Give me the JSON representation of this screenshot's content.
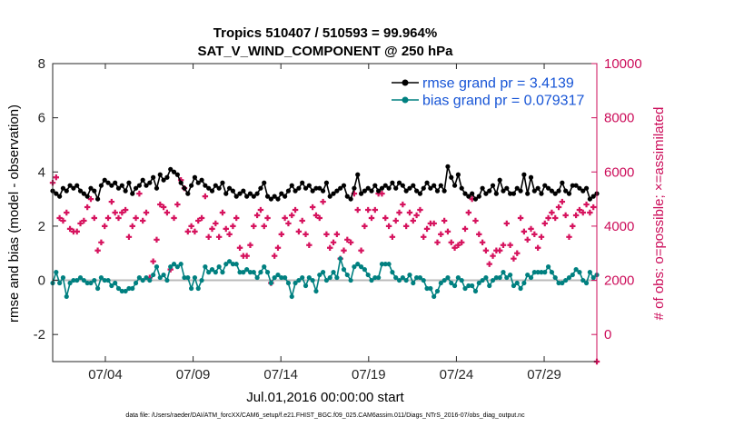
{
  "chart_data": {
    "type": "line",
    "title": [
      "Tropics 510407 / 510593 = 99.964%",
      "SAT_V_WIND_COMPONENT @ 250 hPa"
    ],
    "xlabel": "Jul.01,2016 00:00:00 start",
    "ylabel": "rmse and bias (model - observation)",
    "ylabel_right": "# of obs: o=possible; ×=assimilated",
    "footnote": "data file: /Users/raeder/DAI/ATM_forcXX/CAM6_setup/f.e21.FHIST_BGC.f09_025.CAM6assim.011/Diags_NTrS_2016-07/obs_diag_output.nc",
    "x_ticks": [
      "07/04",
      "07/09",
      "07/14",
      "07/19",
      "07/24",
      "07/29"
    ],
    "x_tick_days": [
      4,
      9,
      14,
      19,
      24,
      29
    ],
    "xlim_days": [
      1,
      32
    ],
    "ylim": [
      -3,
      8
    ],
    "y_ticks": [
      -2,
      0,
      2,
      4,
      6,
      8
    ],
    "ylim_right": [
      -1000,
      10000
    ],
    "y_ticks_right": [
      0,
      2000,
      4000,
      6000,
      8000,
      10000
    ],
    "zero_line": 0,
    "colors": {
      "rmse": "#000000",
      "bias": "#008080",
      "obs": "#d6135e",
      "zero": "#bbbbbb",
      "axis_right": "#cc0d5a",
      "legend_text": "#1654d6"
    },
    "series": [
      {
        "name": "rmse grand pr = 3.4139",
        "axis": "left",
        "values": [
          3.3,
          3.2,
          3.1,
          3.4,
          3.3,
          3.5,
          3.4,
          3.5,
          3.3,
          3.2,
          3.1,
          3.4,
          3.3,
          3.0,
          3.5,
          3.7,
          3.6,
          3.5,
          3.6,
          3.4,
          3.5,
          3.3,
          3.6,
          3.2,
          3.4,
          3.5,
          3.7,
          3.5,
          3.6,
          3.8,
          3.4,
          3.9,
          3.7,
          3.8,
          4.1,
          4.0,
          3.9,
          3.6,
          3.4,
          3.2,
          3.5,
          3.8,
          3.6,
          3.7,
          3.5,
          3.4,
          3.3,
          3.5,
          3.4,
          3.6,
          3.2,
          3.4,
          3.3,
          3.1,
          3.2,
          3.3,
          3.1,
          3.2,
          3.1,
          3.2,
          3.4,
          3.6,
          3.1,
          3.0,
          3.1,
          3.0,
          3.2,
          3.1,
          3.3,
          3.5,
          3.3,
          3.4,
          3.6,
          3.4,
          3.5,
          3.3,
          3.4,
          3.4,
          3.3,
          3.6,
          3.1,
          3.2,
          3.3,
          3.4,
          3.5,
          3.1,
          3.0,
          3.4,
          3.9,
          3.2,
          3.3,
          3.4,
          3.3,
          3.5,
          3.3,
          3.4,
          3.5,
          3.4,
          3.6,
          3.4,
          3.6,
          3.5,
          3.3,
          3.4,
          3.5,
          3.3,
          3.2,
          3.4,
          3.6,
          3.4,
          3.5,
          3.3,
          3.5,
          3.3,
          4.2,
          3.8,
          3.5,
          3.9,
          3.4,
          3.2,
          3.1,
          3.2,
          3.0,
          3.1,
          3.4,
          3.2,
          3.3,
          3.5,
          3.2,
          3.7,
          3.3,
          3.4,
          3.2,
          3.2,
          3.4,
          3.3,
          3.9,
          3.2,
          3.8,
          3.3,
          3.4,
          3.2,
          3.5,
          3.4,
          3.3,
          3.2,
          3.3,
          3.6,
          3.3,
          3.2,
          3.5,
          3.5,
          3.4,
          3.3,
          3.4,
          3.0,
          3.1,
          3.2
        ]
      },
      {
        "name": "bias grand pr = 0.079317",
        "axis": "left",
        "values": [
          -0.1,
          0.3,
          -0.1,
          0.1,
          -0.6,
          -0.1,
          0.0,
          0.0,
          0.1,
          0.0,
          -0.1,
          -0.1,
          0.0,
          -0.3,
          0.1,
          0.0,
          0.0,
          -0.2,
          -0.1,
          -0.3,
          -0.4,
          -0.4,
          -0.3,
          -0.3,
          -0.1,
          0.1,
          0.0,
          0.1,
          0.0,
          0.2,
          0.5,
          0.1,
          0.2,
          0.0,
          0.5,
          0.6,
          0.5,
          0.6,
          0.1,
          0.1,
          -0.3,
          0.1,
          -0.3,
          0.0,
          0.5,
          0.3,
          0.4,
          0.3,
          0.5,
          0.3,
          0.6,
          0.7,
          0.6,
          0.6,
          0.3,
          0.3,
          0.4,
          0.3,
          0.3,
          0.1,
          0.3,
          0.5,
          0.3,
          -0.1,
          0.1,
          0.2,
          0.1,
          0.1,
          -0.1,
          -0.6,
          -0.1,
          0.0,
          0.1,
          -0.2,
          0.1,
          0.0,
          -0.4,
          0.2,
          0.3,
          0.0,
          0.1,
          0.3,
          0.1,
          0.8,
          0.4,
          0.2,
          0.0,
          0.5,
          0.6,
          0.5,
          0.4,
          0.2,
          0.0,
          0.1,
          0.1,
          0.6,
          0.6,
          0.6,
          0.3,
          0.1,
          0.0,
          0.1,
          0.0,
          0.2,
          -0.1,
          0.1,
          0.1,
          0.0,
          -0.3,
          -0.3,
          -0.6,
          -0.4,
          -0.1,
          0.0,
          0.1,
          -0.1,
          -0.2,
          0.1,
          0.0,
          -0.3,
          -0.2,
          -0.2,
          -0.4,
          -0.1,
          0.0,
          0.1,
          -0.2,
          0.0,
          0.1,
          0.1,
          0.3,
          0.1,
          0.2,
          -0.2,
          -0.1,
          -0.3,
          -0.1,
          0.2,
          0.1,
          0.3,
          0.3,
          0.3,
          0.3,
          0.5,
          0.3,
          0.1,
          -0.1,
          -0.1,
          0.0,
          0.1,
          0.2,
          0.4,
          0.3,
          0.0,
          -0.1,
          0.3,
          0.1,
          0.2
        ]
      },
      {
        "name": "# of obs (assimilated)",
        "axis": "right",
        "values": [
          5600,
          5800,
          4300,
          4200,
          4500,
          3900,
          3800,
          3800,
          4100,
          4200,
          4700,
          5000,
          4300,
          3100,
          3400,
          4000,
          4300,
          4900,
          4500,
          4300,
          4500,
          4600,
          3600,
          4000,
          4300,
          5200,
          4200,
          4500,
          2100,
          2700,
          3500,
          4800,
          4700,
          4500,
          2400,
          4300,
          4800,
          5700,
          5400,
          3800,
          4000,
          3800,
          4200,
          4300,
          5100,
          3600,
          3900,
          4100,
          3600,
          4500,
          3900,
          3700,
          4000,
          4300,
          3200,
          2900,
          2900,
          3300,
          4000,
          4400,
          4600,
          4000,
          4300,
          1900,
          2900,
          3200,
          3700,
          4300,
          4100,
          4400,
          4600,
          3800,
          4200,
          3700,
          3300,
          4700,
          4400,
          4300,
          4900,
          3700,
          3200,
          3400,
          3700,
          2800,
          3100,
          3500,
          3400,
          5200,
          4600,
          3100,
          4000,
          4600,
          4300,
          4600,
          5200,
          5200,
          4300,
          4000,
          3600,
          4200,
          4500,
          4800,
          4000,
          4500,
          4200,
          4400,
          4600,
          3600,
          3900,
          4100,
          4100,
          3400,
          3700,
          4200,
          3800,
          3400,
          3200,
          3300,
          3400,
          3900,
          4500,
          5000,
          4200,
          3700,
          3400,
          3100,
          2600,
          2900,
          3100,
          3100,
          3300,
          4100,
          3300,
          2800,
          3000,
          4300,
          3800,
          3500,
          3900,
          3700,
          3200,
          3600,
          4100,
          4300,
          4500,
          4300,
          4700,
          4900,
          4400,
          3600,
          4000,
          4400,
          4600,
          4500,
          4800,
          4500,
          4700,
          -1000
        ]
      }
    ]
  }
}
